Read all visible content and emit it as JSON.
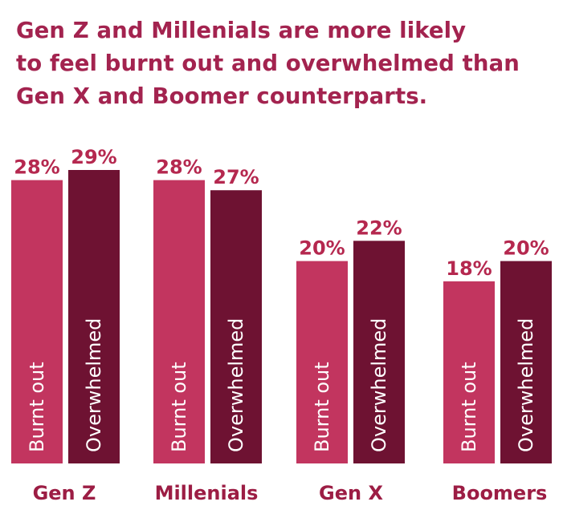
{
  "chart_data": {
    "type": "bar",
    "title_lines": [
      "Gen Z and Millenials are more likely",
      "to feel burnt out and overwhelmed than",
      "Gen X and Boomer counterparts."
    ],
    "categories": [
      "Gen Z",
      "Millenials",
      "Gen X",
      "Boomers"
    ],
    "series": [
      {
        "name": "Burnt out",
        "values": [
          28,
          28,
          20,
          18
        ],
        "labels": [
          "28%",
          "28%",
          "20%",
          "18%"
        ],
        "color": "#c2355f"
      },
      {
        "name": "Overwhelmed",
        "values": [
          29,
          27,
          22,
          20
        ],
        "labels": [
          "29%",
          "27%",
          "22%",
          "20%"
        ],
        "color": "#6e1232"
      }
    ],
    "ylim": [
      0,
      29
    ],
    "grid": false,
    "legend": "none",
    "unit": "%",
    "value_label_color": "#b5284f",
    "category_label_color": "#9c1d44",
    "title_color": "#a3234f",
    "bar_text_color": "#ffffff"
  }
}
